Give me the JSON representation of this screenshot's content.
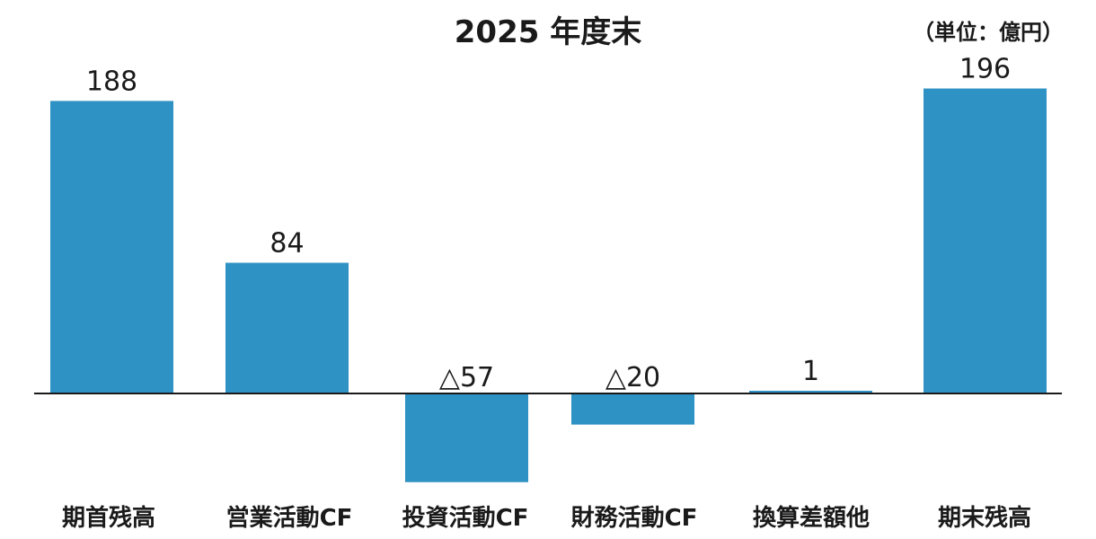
{
  "chart_data": {
    "type": "bar",
    "title": "2025 年度末",
    "unit_label": "（単位：億円）",
    "categories": [
      "期首残高",
      "営業活動CF",
      "投資活動CF",
      "財務活動CF",
      "換算差額他",
      "期末残高"
    ],
    "values": [
      188,
      84,
      -57,
      -20,
      1,
      196
    ],
    "data_labels": [
      "188",
      "84",
      "△57",
      "△20",
      "1",
      "196"
    ],
    "bar_color": "#2e92c4",
    "baseline_color": "#1a1a1a",
    "grid": false,
    "legend": "none"
  }
}
